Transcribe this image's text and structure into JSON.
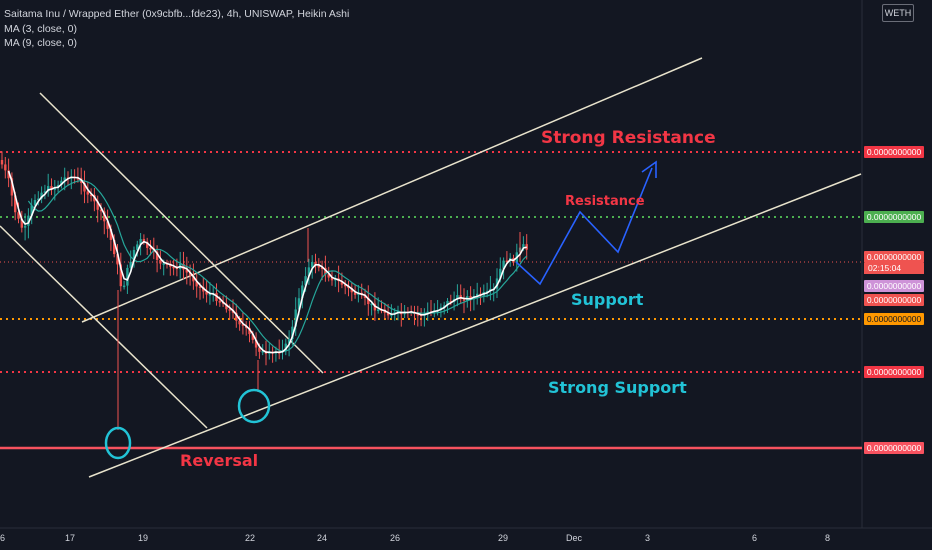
{
  "legend": {
    "title": "Saitama Inu / Wrapped Ether (0x9cbfb...fde23), 4h, UNISWAP, Heikin Ashi",
    "ma3": "MA (3, close, 0)",
    "ma9": "MA (9, close, 0)"
  },
  "symbol_badge": "WETH",
  "price_tags": {
    "strong_resistance": "0.0000000000",
    "resistance": "0.0000000000",
    "last_price": "0.0000000000",
    "countdown": "02:15:04",
    "ma_a": "0.0000000000",
    "ma_b": "0.0000000000",
    "support": "0.0000000000",
    "strong_support": "0.0000000000",
    "reversal": "0.0000000000"
  },
  "colors": {
    "background": "#131722",
    "up": "#26a69a",
    "down": "#ef5350",
    "strong_level": "#f23645",
    "resistance_level": "#4caf50",
    "support_level": "#ff9800",
    "reversal_level": "#f7525f",
    "channel": "#e8e3cc",
    "projection": "#2962ff",
    "annotation_red": "#f23645",
    "annotation_cyan": "#22c3d6",
    "ma3": "#ffffff",
    "ma9": "#26a69a",
    "ma_tag_purple": "#ce93d8"
  },
  "chart_data": {
    "type": "candlestick",
    "style": "Heikin Ashi",
    "timeframe": "4h",
    "x_tick_labels": [
      "6",
      "17",
      "19",
      "22",
      "24",
      "26",
      "29",
      "Dec",
      "3",
      "6",
      "8"
    ],
    "annotations": {
      "strong_resistance": "Strong Resistance",
      "resistance": "Resistance",
      "support": "Support",
      "strong_support": "Strong Support",
      "reversal": "Reversal"
    },
    "levels": [
      "strong_resistance",
      "resistance",
      "support",
      "strong_support",
      "reversal"
    ],
    "grid": false
  }
}
